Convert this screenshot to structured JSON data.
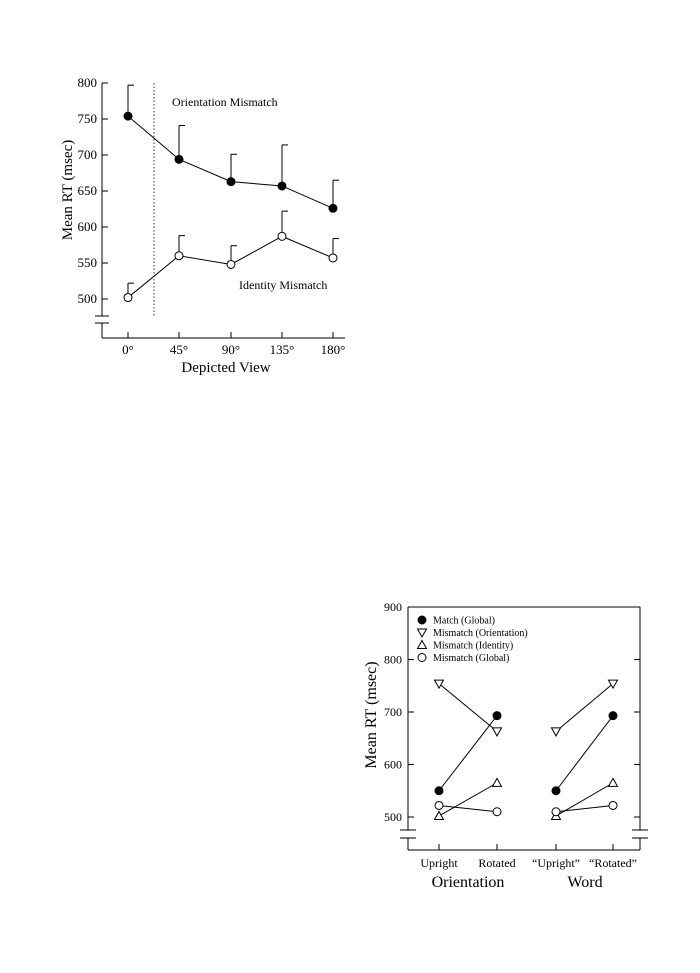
{
  "chart_data": [
    {
      "type": "line",
      "xlabel": "Depicted View",
      "ylabel": "Mean RT (msec)",
      "categories": [
        "0°",
        "45°",
        "90°",
        "135°",
        "180°"
      ],
      "yticks": [
        "500",
        "550",
        "600",
        "650",
        "700",
        "750",
        "800"
      ],
      "ylim": [
        480,
        800
      ],
      "series": [
        {
          "name": "Orientation Mismatch",
          "marker": "filled-circle",
          "values": [
            754,
            694,
            663,
            657,
            626
          ],
          "error_upper": [
            797,
            741,
            701,
            714,
            665
          ]
        },
        {
          "name": "Identity Mismatch",
          "marker": "open-circle",
          "values": [
            502,
            560,
            548,
            587,
            557
          ],
          "error_upper": [
            522,
            588,
            574,
            622,
            584
          ]
        }
      ],
      "annotations": [
        "Orientation Mismatch",
        "Identity Mismatch"
      ],
      "grid": false,
      "axis_break": true
    },
    {
      "type": "line",
      "ylabel": "Mean RT (msec)",
      "yticks": [
        "500",
        "600",
        "700",
        "800",
        "900"
      ],
      "ylim": [
        480,
        900
      ],
      "groups": [
        {
          "label": "Orientation",
          "categories": [
            "Upright",
            "Rotated"
          ]
        },
        {
          "label": "Word",
          "categories": [
            "“Upright”",
            "“Rotated”"
          ]
        }
      ],
      "series": [
        {
          "name": "Match (Global)",
          "marker": "filled-circle",
          "values": [
            [
              550,
              693
            ],
            [
              550,
              693
            ]
          ]
        },
        {
          "name": "Mismatch (Orientation)",
          "marker": "down-triangle",
          "values": [
            [
              754,
              663
            ],
            [
              663,
              754
            ]
          ]
        },
        {
          "name": "Mismatch (Identity)",
          "marker": "up-triangle",
          "values": [
            [
              502,
              565
            ],
            [
              502,
              565
            ]
          ]
        },
        {
          "name": "Mismatch (Global)",
          "marker": "open-circle",
          "values": [
            [
              522,
              510
            ],
            [
              510,
              522
            ]
          ]
        }
      ],
      "legend_position": "top-left",
      "grid": false,
      "axis_break": true
    }
  ]
}
